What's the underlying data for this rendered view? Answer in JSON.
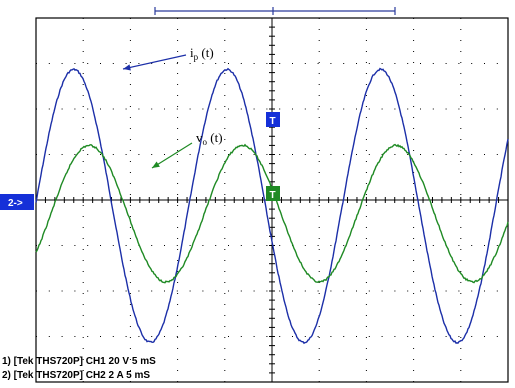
{
  "chart_data": {
    "type": "line",
    "title": "",
    "xlabel": "",
    "ylabel": "",
    "divisions": {
      "x": 10,
      "y": 8
    },
    "grid": true,
    "xlim": [
      0,
      10
    ],
    "ylim": [
      -4,
      4
    ],
    "series": [
      {
        "name": "ip (t)",
        "color": "#1c2fa8",
        "amplitude_div": 3.0,
        "offset_div": -0.13,
        "period_div": 3.25,
        "phase_div": 0.8,
        "annotation": {
          "base": "i",
          "sub": "p",
          "rest": " (t)"
        }
      },
      {
        "name": "vo (t)",
        "color": "#1f8a24",
        "amplitude_div": 1.5,
        "offset_div": -0.3,
        "period_div": 3.25,
        "phase_div": 1.13,
        "annotation": {
          "base": "v",
          "sub": "o",
          "rest": " (t)"
        }
      }
    ],
    "markers": {
      "ground": "2->",
      "trigger_blue": "T",
      "trigger_green": "T"
    },
    "footer": [
      "1) [Tek THS720P] CH1  20  V   5 mS",
      "2) [Tek THS720P] CH2  2  A   5 mS"
    ],
    "colors": {
      "grid": "#000000",
      "trigger_bar": "#2a3b9c"
    }
  }
}
